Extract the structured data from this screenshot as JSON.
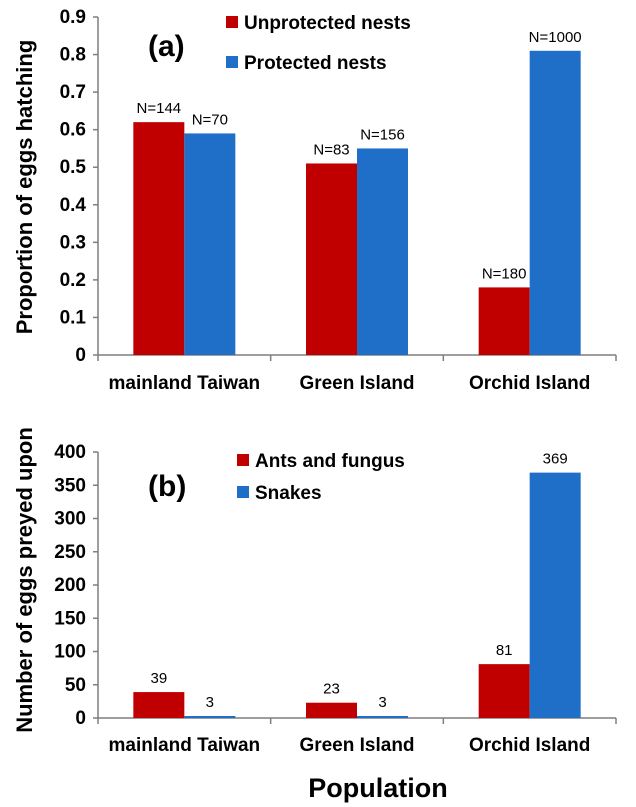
{
  "colors": {
    "series1": "#c00000",
    "series2": "#1f6fc9",
    "axis": "#7f7f7f"
  },
  "xlabel": "Population",
  "chart_data": [
    {
      "type": "bar",
      "panel_label": "(a)",
      "ylabel": "Proportion of eggs hatching",
      "categories": [
        "mainland Taiwan",
        "Green Island",
        "Orchid Island"
      ],
      "ylim": [
        0,
        0.9
      ],
      "yticks": [
        "0",
        "0.1",
        "0.2",
        "0.3",
        "0.4",
        "0.5",
        "0.6",
        "0.7",
        "0.8",
        "0.9"
      ],
      "legend_position": "top-center",
      "series": [
        {
          "name": "Unprotected nests",
          "values": [
            0.62,
            0.51,
            0.18
          ],
          "labels": [
            "N=144",
            "N=83",
            "N=180"
          ]
        },
        {
          "name": "Protected nests",
          "values": [
            0.59,
            0.55,
            0.81
          ],
          "labels": [
            "N=70",
            "N=156",
            "N=1000"
          ]
        }
      ]
    },
    {
      "type": "bar",
      "panel_label": "(b)",
      "ylabel": "Number of eggs preyed upon",
      "categories": [
        "mainland Taiwan",
        "Green Island",
        "Orchid Island"
      ],
      "ylim": [
        0,
        400
      ],
      "yticks": [
        "0",
        "50",
        "100",
        "150",
        "200",
        "250",
        "300",
        "350",
        "400"
      ],
      "legend_position": "top-center",
      "series": [
        {
          "name": "Ants and fungus",
          "values": [
            39,
            23,
            81
          ],
          "labels": [
            "39",
            "23",
            "81"
          ]
        },
        {
          "name": "Snakes",
          "values": [
            3,
            3,
            369
          ],
          "labels": [
            "3",
            "3",
            "369"
          ]
        }
      ]
    }
  ]
}
